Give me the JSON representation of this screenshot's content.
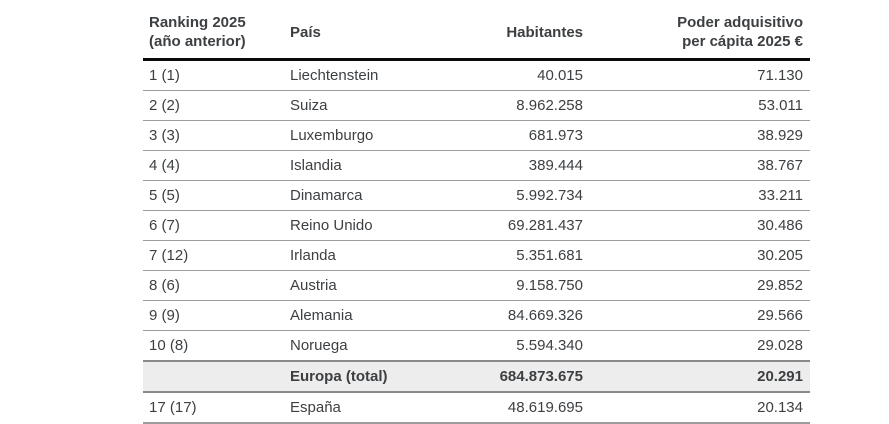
{
  "table": {
    "header": {
      "ranking_line1": "Ranking 2025",
      "ranking_line2": "(año anterior)",
      "pais": "País",
      "habitantes": "Habitantes",
      "poder_line1": "Poder adquisitivo",
      "poder_line2": "per cápita 2025 €"
    },
    "rows": [
      {
        "rank": "1 (1)",
        "country": "Liechtenstein",
        "habitantes": "40.015",
        "poder": "71.130"
      },
      {
        "rank": "2 (2)",
        "country": "Suiza",
        "habitantes": "8.962.258",
        "poder": "53.011"
      },
      {
        "rank": "3 (3)",
        "country": "Luxemburgo",
        "habitantes": "681.973",
        "poder": "38.929"
      },
      {
        "rank": "4 (4)",
        "country": "Islandia",
        "habitantes": "389.444",
        "poder": "38.767"
      },
      {
        "rank": "5 (5)",
        "country": "Dinamarca",
        "habitantes": "5.992.734",
        "poder": "33.211"
      },
      {
        "rank": "6 (7)",
        "country": "Reino Unido",
        "habitantes": "69.281.437",
        "poder": "30.486"
      },
      {
        "rank": "7 (12)",
        "country": "Irlanda",
        "habitantes": "5.351.681",
        "poder": "30.205"
      },
      {
        "rank": "8 (6)",
        "country": "Austria",
        "habitantes": "9.158.750",
        "poder": "29.852"
      },
      {
        "rank": "9 (9)",
        "country": "Alemania",
        "habitantes": "84.669.326",
        "poder": "29.566"
      },
      {
        "rank": "10 (8)",
        "country": "Noruega",
        "habitantes": "5.594.340",
        "poder": "29.028"
      },
      {
        "rank": "",
        "country": "Europa (total)",
        "habitantes": "684.873.675",
        "poder": "20.291"
      },
      {
        "rank": "17 (17)",
        "country": "España",
        "habitantes": "48.619.695",
        "poder": "20.134"
      }
    ],
    "colors": {
      "text": "#3d4043",
      "header_border": "#0a0a0a",
      "row_border": "#9c9c9c",
      "total_row_bg": "#ededed",
      "total_row_border": "#8a8a8a"
    }
  },
  "chart_data": {
    "type": "table",
    "title": "Poder adquisitivo per cápita 2025 €",
    "columns": [
      "Ranking 2025 (año anterior)",
      "País",
      "Habitantes",
      "Poder adquisitivo per cápita 2025 €"
    ],
    "rows": [
      [
        "1 (1)",
        "Liechtenstein",
        40015,
        71130
      ],
      [
        "2 (2)",
        "Suiza",
        8962258,
        53011
      ],
      [
        "3 (3)",
        "Luxemburgo",
        681973,
        38929
      ],
      [
        "4 (4)",
        "Islandia",
        389444,
        38767
      ],
      [
        "5 (5)",
        "Dinamarca",
        5992734,
        33211
      ],
      [
        "6 (7)",
        "Reino Unido",
        69281437,
        30486
      ],
      [
        "7 (12)",
        "Irlanda",
        5351681,
        30205
      ],
      [
        "8 (6)",
        "Austria",
        9158750,
        29852
      ],
      [
        "9 (9)",
        "Alemania",
        84669326,
        29566
      ],
      [
        "10 (8)",
        "Noruega",
        5594340,
        29028
      ],
      [
        "",
        "Europa (total)",
        684873675,
        20291
      ],
      [
        "17 (17)",
        "España",
        48619695,
        20134
      ]
    ],
    "number_format": "es-ES thousands separator '.'",
    "highlight_row": "Europa (total)"
  }
}
